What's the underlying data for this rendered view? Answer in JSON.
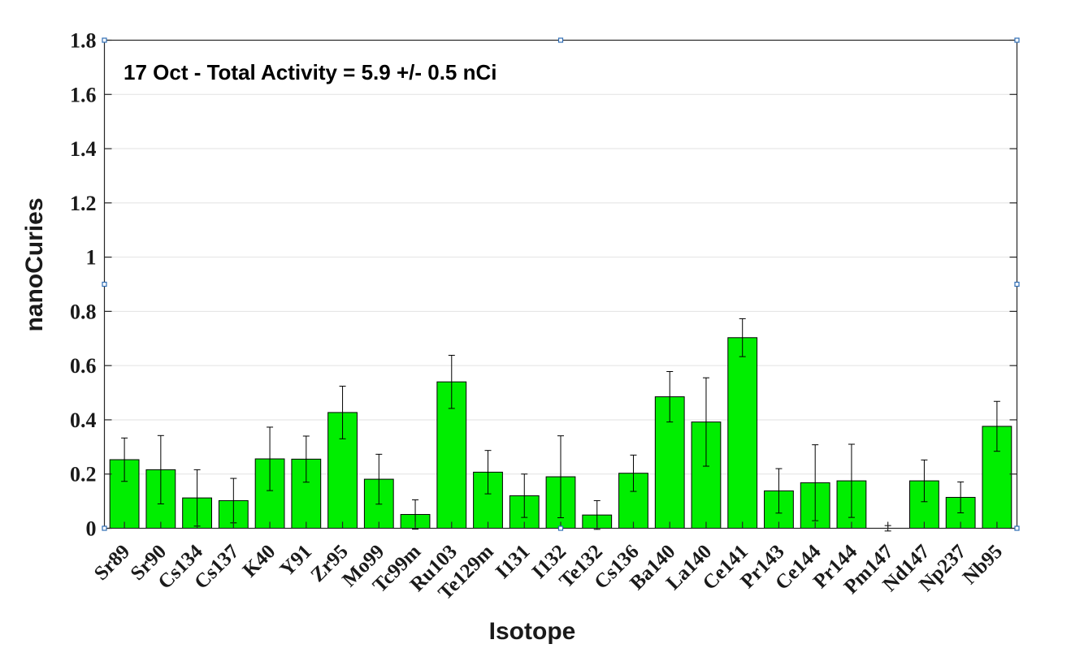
{
  "chart_data": {
    "type": "bar",
    "annotation": "17 Oct - Total Activity = 5.9 +/- 0.5 nCi",
    "xlabel": "Isotope",
    "ylabel": "nanoCuries",
    "ylim": [
      0,
      1.8
    ],
    "yticks": [
      "0",
      "0.2",
      "0.4",
      "0.6",
      "0.8",
      "1",
      "1.2",
      "1.4",
      "1.6",
      "1.8"
    ],
    "grid": true,
    "bar_color": "#00ee00",
    "categories": [
      "Sr89",
      "Sr90",
      "Cs134",
      "Cs137",
      "K40",
      "Y91",
      "Zr95",
      "Mo99",
      "Tc99m",
      "Ru103",
      "Te129m",
      "I131",
      "I132",
      "Te132",
      "Cs136",
      "Ba140",
      "La140",
      "Ce141",
      "Pr143",
      "Ce144",
      "Pr144",
      "Pm147",
      "Nd147",
      "Np237",
      "Nb95"
    ],
    "values": [
      0.253,
      0.216,
      0.112,
      0.102,
      0.256,
      0.255,
      0.427,
      0.181,
      0.051,
      0.54,
      0.207,
      0.12,
      0.19,
      0.049,
      0.203,
      0.485,
      0.392,
      0.703,
      0.138,
      0.168,
      0.175,
      0.0,
      0.175,
      0.114,
      0.376
    ],
    "errors": [
      0.08,
      0.126,
      0.104,
      0.082,
      0.117,
      0.085,
      0.097,
      0.092,
      0.054,
      0.098,
      0.08,
      0.08,
      0.151,
      0.053,
      0.067,
      0.093,
      0.163,
      0.07,
      0.082,
      0.14,
      0.135,
      0.01,
      0.077,
      0.057,
      0.092
    ]
  }
}
